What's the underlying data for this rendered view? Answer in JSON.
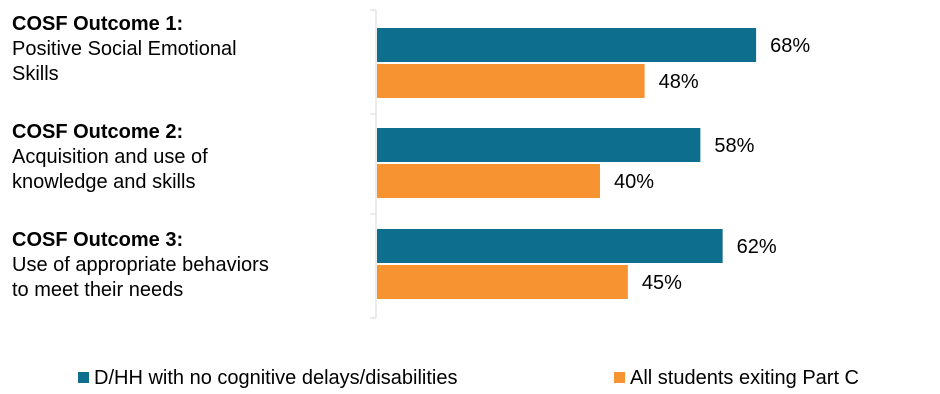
{
  "chart_data": {
    "type": "bar",
    "orientation": "horizontal",
    "categories": [
      {
        "title": "COSF Outcome 1:",
        "description": [
          "Positive Social Emotional",
          "Skills"
        ]
      },
      {
        "title": "COSF Outcome 2:",
        "description": [
          "Acquisition and use of",
          "knowledge and skills"
        ]
      },
      {
        "title": "COSF Outcome 3:",
        "description": [
          "Use of appropriate behaviors",
          "to meet their needs"
        ]
      }
    ],
    "series": [
      {
        "name": "D/HH with no cognitive delays/disabilities",
        "color": "#0e6e8e",
        "values": [
          68,
          58,
          62
        ],
        "labels": [
          "68%",
          "58%",
          "62%"
        ]
      },
      {
        "name": "All students exiting Part C",
        "color": "#f79431",
        "values": [
          48,
          40,
          45
        ],
        "labels": [
          "48%",
          "40%",
          "45%"
        ]
      }
    ],
    "xlim": [
      0,
      100
    ],
    "grid": false,
    "legend_position": "bottom"
  }
}
